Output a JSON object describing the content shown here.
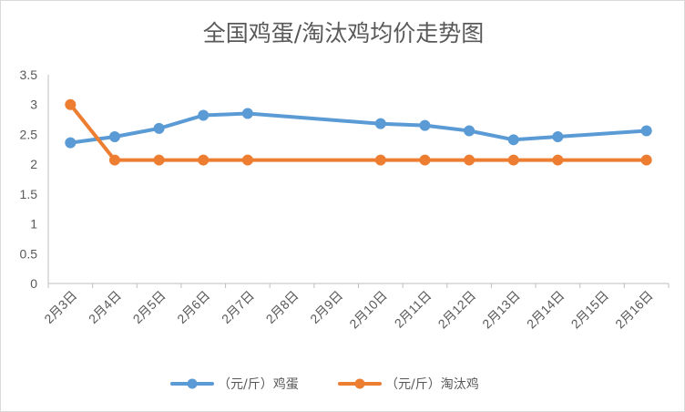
{
  "chart_data": {
    "type": "line",
    "title": "全国鸡蛋/淘汰鸡均价走势图",
    "categories": [
      "2月3日",
      "2月4日",
      "2月5日",
      "2月6日",
      "2月7日",
      "2月8日",
      "2月9日",
      "2月10日",
      "2月11日",
      "2月12日",
      "2月13日",
      "2月14日",
      "2月15日",
      "2月16日"
    ],
    "series": [
      {
        "name": "（元/斤）鸡蛋",
        "color": "#5b9bd5",
        "values": [
          2.36,
          2.46,
          2.6,
          2.82,
          2.85,
          null,
          null,
          2.68,
          2.65,
          2.56,
          2.41,
          2.46,
          null,
          2.56
        ]
      },
      {
        "name": "（元/斤）淘汰鸡",
        "color": "#ed7d31",
        "values": [
          3.0,
          2.07,
          2.07,
          2.07,
          2.07,
          null,
          null,
          2.07,
          2.07,
          2.07,
          2.07,
          2.07,
          null,
          2.07
        ]
      }
    ],
    "ylim": [
      0,
      3.5
    ],
    "yticks": [
      0,
      0.5,
      1,
      1.5,
      2,
      2.5,
      3,
      3.5
    ],
    "ytick_labels": [
      "0",
      "0.5",
      "1",
      "1.5",
      "2",
      "2.5",
      "3",
      "3.5"
    ],
    "grid": false,
    "legend": "bottom"
  }
}
